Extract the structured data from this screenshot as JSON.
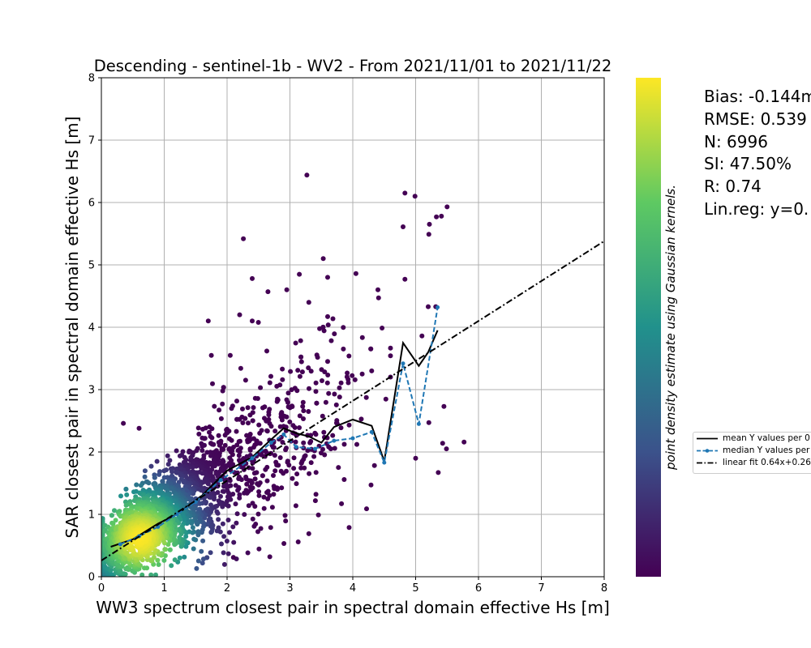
{
  "chart_data": {
    "type": "scatter",
    "title": "Descending - sentinel-1b - WV2 - From 2021/11/01 to 2021/11/22",
    "xlabel": "WW3 spectrum closest pair in spectral domain effective Hs [m]",
    "ylabel": "SAR closest pair in spectral domain effective Hs [m]",
    "xlim": [
      0,
      8
    ],
    "ylim": [
      0,
      8
    ],
    "xticks": [
      "0",
      "1",
      "2",
      "3",
      "4",
      "5",
      "6",
      "7",
      "8"
    ],
    "yticks": [
      "0",
      "1",
      "2",
      "3",
      "4",
      "5",
      "6",
      "7",
      "8"
    ],
    "grid": true,
    "colorbar_label": "point density estimate using Gaussian kernels.",
    "colormap": [
      "#440154",
      "#3b528b",
      "#21918c",
      "#5ec962",
      "#fde725"
    ],
    "stats": [
      "Bias: -0.144m",
      "RMSE: 0.539",
      "N: 6996",
      "SI: 47.50%",
      "R: 0.74",
      "Lin.reg: y=0."
    ],
    "series": [
      {
        "name": "mean Y values per 0",
        "style": "solid",
        "color": "#000000",
        "x": [
          0.15,
          0.5,
          0.9,
          1.2,
          1.6,
          2.0,
          2.4,
          2.7,
          2.9,
          3.1,
          3.3,
          3.5,
          3.7,
          4.0,
          4.3,
          4.5,
          4.8,
          5.05,
          5.2,
          5.35
        ],
        "y": [
          0.48,
          0.6,
          0.85,
          1.0,
          1.3,
          1.7,
          1.92,
          2.2,
          2.38,
          2.3,
          2.25,
          2.15,
          2.4,
          2.52,
          2.42,
          1.85,
          3.75,
          3.38,
          3.6,
          3.95
        ]
      },
      {
        "name": "median Y values per",
        "style": "dashed",
        "color": "#1f77b4",
        "x": [
          0.3,
          0.6,
          0.9,
          1.2,
          1.5,
          1.9,
          2.4,
          2.7,
          2.9,
          3.1,
          3.4,
          3.7,
          4.0,
          4.3,
          4.5,
          4.8,
          5.05,
          5.35
        ],
        "y": [
          0.52,
          0.65,
          0.8,
          1.0,
          1.2,
          1.55,
          1.9,
          2.15,
          2.28,
          2.08,
          2.05,
          2.18,
          2.22,
          2.32,
          1.83,
          3.42,
          2.45,
          4.32
        ]
      },
      {
        "name": "linear fit 0.64x+0.26",
        "style": "dashdot",
        "color": "#000000",
        "x": [
          0,
          8
        ],
        "y": [
          0.26,
          5.38
        ]
      }
    ],
    "outliers": [
      [
        2.26,
        5.42
      ],
      [
        3.27,
        6.44
      ],
      [
        3.53,
        5.1
      ],
      [
        4.05,
        4.86
      ],
      [
        4.4,
        4.6
      ],
      [
        4.41,
        4.47
      ],
      [
        4.8,
        5.61
      ],
      [
        4.83,
        6.15
      ],
      [
        4.99,
        6.1
      ],
      [
        4.83,
        4.77
      ],
      [
        5.22,
        5.65
      ],
      [
        5.33,
        5.77
      ],
      [
        5.41,
        5.78
      ],
      [
        5.5,
        5.93
      ],
      [
        5.21,
        5.49
      ],
      [
        5.2,
        4.33
      ],
      [
        5.1,
        3.86
      ],
      [
        5.32,
        4.33
      ],
      [
        5.45,
        2.73
      ],
      [
        5.0,
        1.9
      ],
      [
        5.36,
        1.67
      ],
      [
        5.43,
        2.14
      ],
      [
        5.77,
        2.16
      ],
      [
        5.49,
        2.05
      ],
      [
        5.21,
        2.47
      ],
      [
        4.22,
        1.09
      ],
      [
        4.29,
        1.47
      ],
      [
        3.82,
        1.17
      ],
      [
        2.2,
        4.2
      ],
      [
        2.4,
        4.1
      ],
      [
        2.95,
        4.6
      ],
      [
        3.15,
        4.85
      ],
      [
        2.65,
        4.57
      ],
      [
        3.6,
        4.8
      ],
      [
        1.75,
        3.55
      ],
      [
        2.05,
        3.55
      ],
      [
        1.7,
        4.1
      ],
      [
        0.35,
        2.46
      ],
      [
        0.6,
        2.38
      ],
      [
        2.68,
        0.32
      ],
      [
        3.3,
        0.69
      ],
      [
        2.1,
        0.31
      ],
      [
        4.3,
        3.3
      ],
      [
        3.85,
        3.65
      ],
      [
        3.6,
        3.45
      ],
      [
        4.15,
        3.25
      ],
      [
        2.4,
        4.78
      ],
      [
        3.6,
        4.17
      ],
      [
        3.3,
        4.4
      ],
      [
        3.65,
        2.05
      ]
    ]
  }
}
